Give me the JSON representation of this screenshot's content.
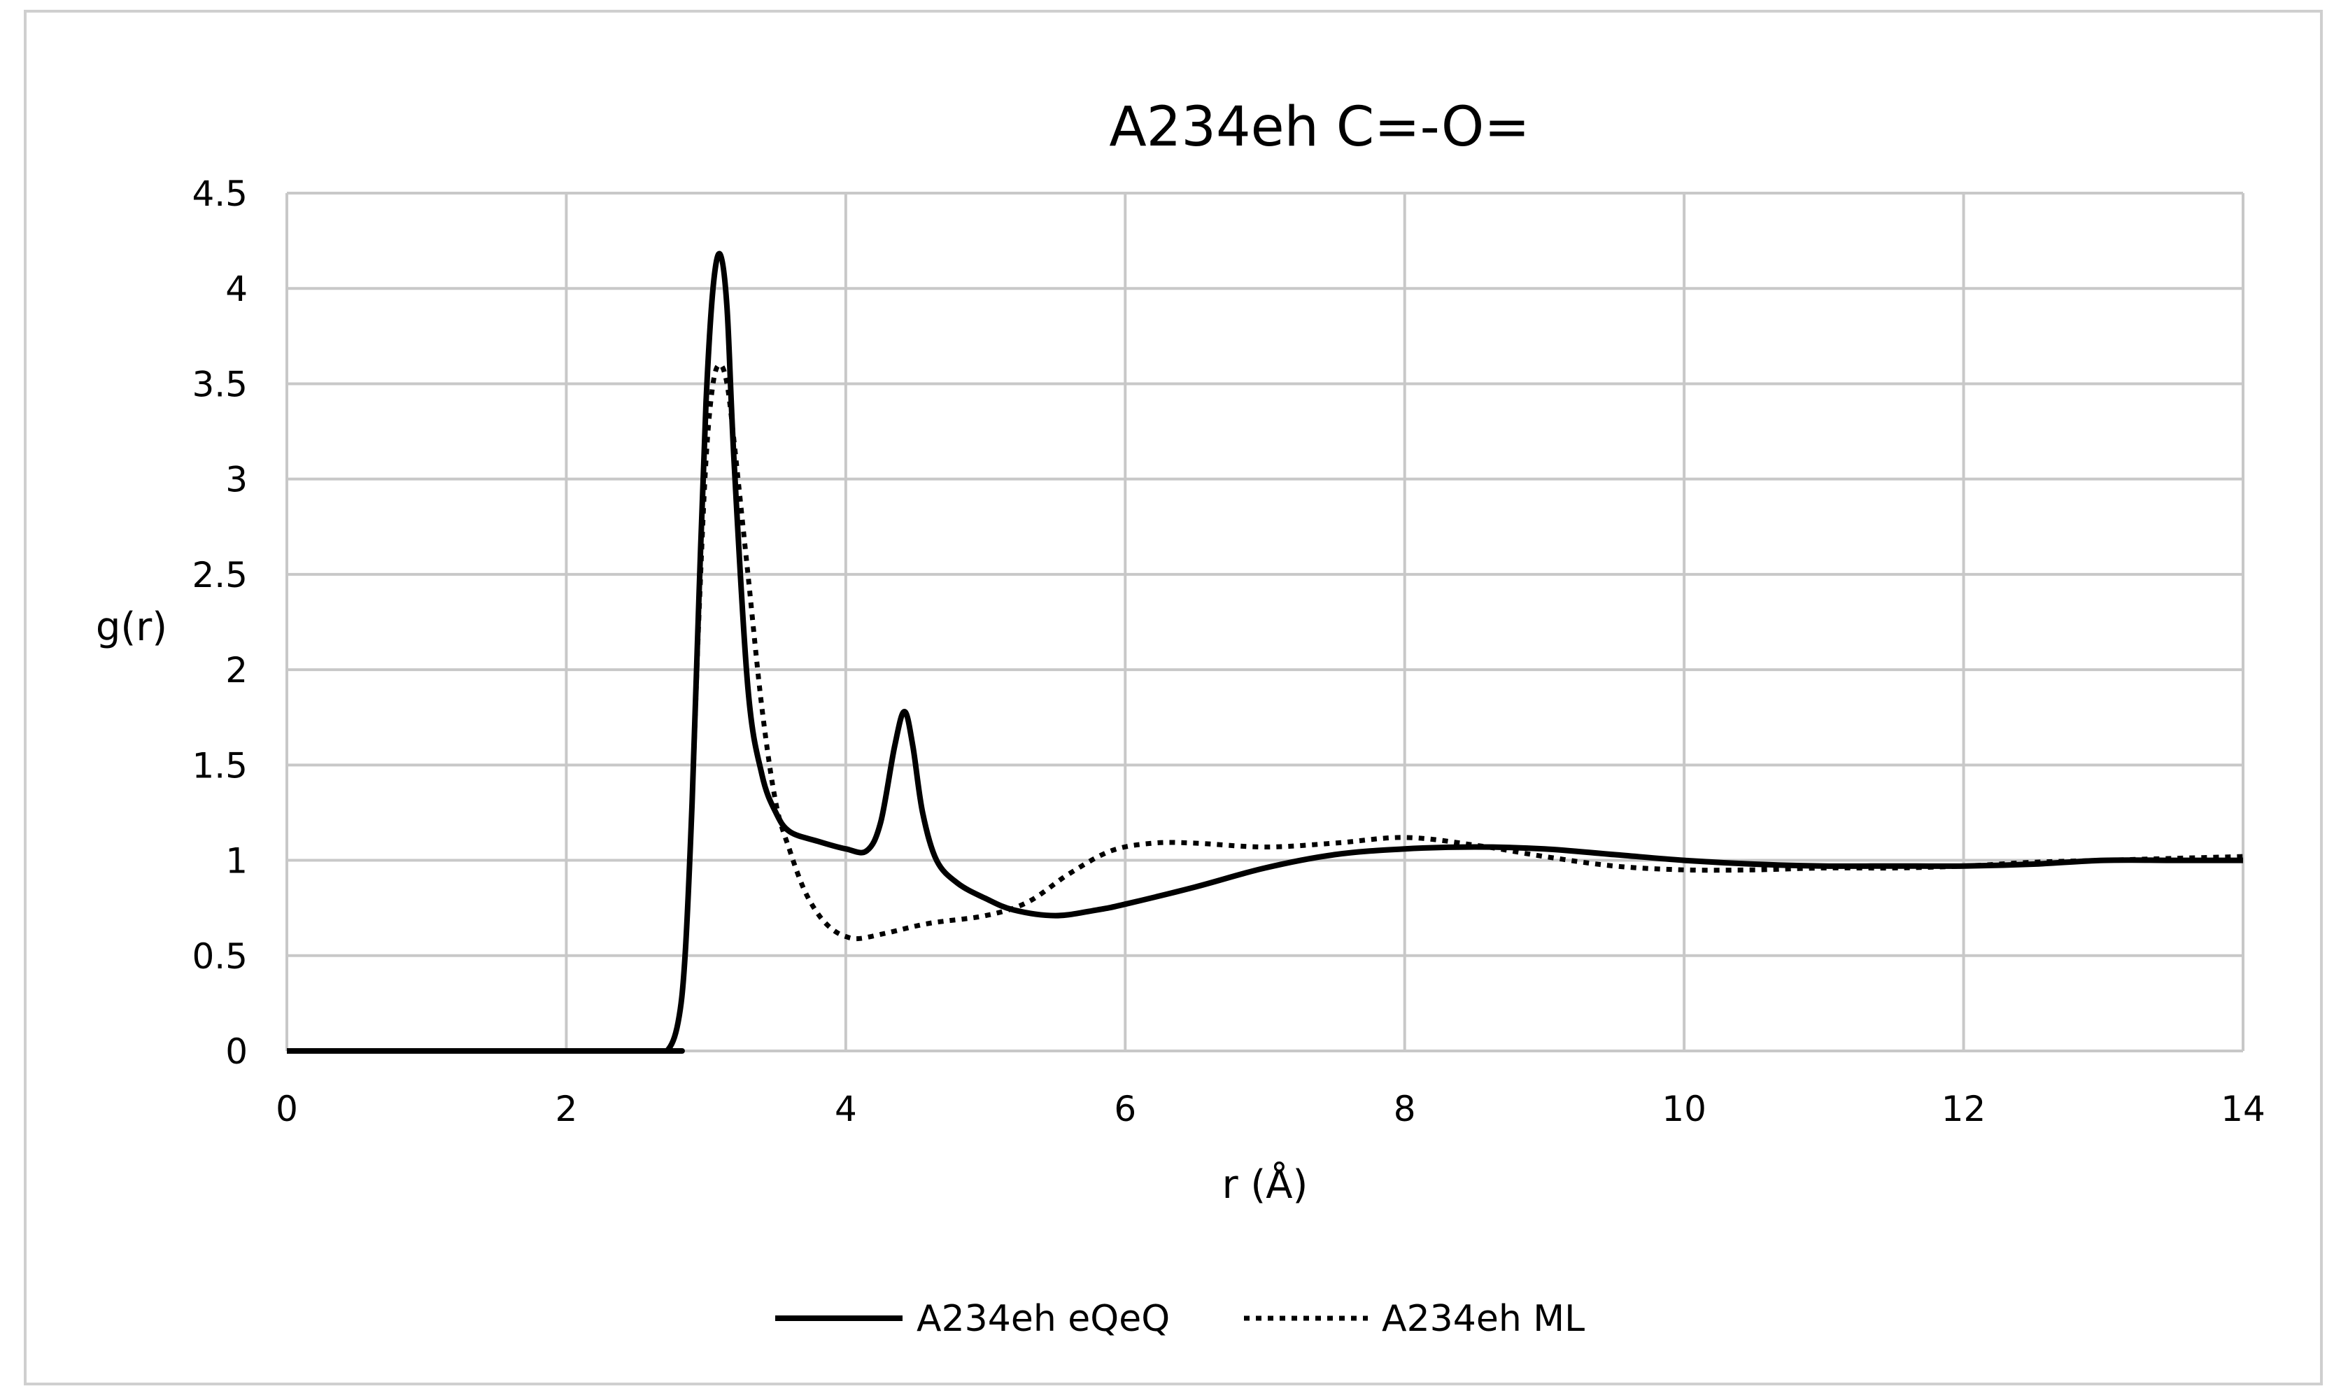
{
  "chart_data": {
    "type": "line",
    "title": "A234eh C=-O=",
    "xlabel": "r (Å)",
    "ylabel": "g(r)",
    "xlim": [
      0,
      14
    ],
    "ylim": [
      0,
      4.5
    ],
    "x_ticks": [
      "0",
      "2",
      "4",
      "6",
      "8",
      "10",
      "12",
      "14"
    ],
    "y_ticks": [
      "0",
      "0.5",
      "1",
      "1.5",
      "2",
      "2.5",
      "3",
      "3.5",
      "4",
      "4.5"
    ],
    "grid": true,
    "legend_position": "bottom",
    "series": [
      {
        "name": "A234eh eQeQ",
        "style": "solid",
        "color": "#000000",
        "x": [
          0,
          2.6,
          2.72,
          2.8,
          2.85,
          2.9,
          2.95,
          3.0,
          3.05,
          3.1,
          3.15,
          3.2,
          3.3,
          3.4,
          3.5,
          3.6,
          3.8,
          4.0,
          4.15,
          4.25,
          4.35,
          4.42,
          4.48,
          4.55,
          4.65,
          4.8,
          5.0,
          5.2,
          5.5,
          5.8,
          6.0,
          6.5,
          7.0,
          7.5,
          8.0,
          8.5,
          9.0,
          9.5,
          10.0,
          10.5,
          11.0,
          11.5,
          12.0,
          12.5,
          13.0,
          13.5,
          14.0
        ],
        "y": [
          0,
          0,
          0,
          0.15,
          0.5,
          1.3,
          2.4,
          3.4,
          4.0,
          4.18,
          3.9,
          3.1,
          1.9,
          1.45,
          1.25,
          1.15,
          1.1,
          1.06,
          1.05,
          1.2,
          1.6,
          1.78,
          1.6,
          1.25,
          1.0,
          0.88,
          0.8,
          0.74,
          0.71,
          0.74,
          0.77,
          0.86,
          0.96,
          1.03,
          1.06,
          1.07,
          1.06,
          1.03,
          1.0,
          0.98,
          0.97,
          0.97,
          0.97,
          0.98,
          1.0,
          1.0,
          1.0
        ]
      },
      {
        "name": "A234eh ML",
        "style": "dotted",
        "color": "#000000",
        "x": [
          0,
          2.6,
          2.72,
          2.8,
          2.85,
          2.9,
          2.95,
          3.0,
          3.05,
          3.1,
          3.15,
          3.2,
          3.3,
          3.4,
          3.5,
          3.6,
          3.7,
          3.8,
          3.9,
          4.0,
          4.1,
          4.3,
          4.6,
          5.0,
          5.3,
          5.6,
          5.9,
          6.2,
          6.5,
          7.0,
          7.5,
          8.0,
          8.5,
          9.0,
          9.5,
          10.0,
          10.5,
          11.0,
          11.5,
          12.0,
          12.5,
          13.0,
          13.5,
          14.0
        ],
        "y": [
          0,
          0,
          0,
          0.15,
          0.5,
          1.3,
          2.3,
          3.1,
          3.5,
          3.6,
          3.5,
          3.2,
          2.5,
          1.8,
          1.3,
          1.05,
          0.85,
          0.72,
          0.64,
          0.6,
          0.59,
          0.62,
          0.67,
          0.71,
          0.78,
          0.93,
          1.05,
          1.09,
          1.09,
          1.07,
          1.09,
          1.12,
          1.08,
          1.02,
          0.97,
          0.95,
          0.95,
          0.96,
          0.96,
          0.97,
          0.99,
          1.0,
          1.01,
          1.02
        ]
      }
    ]
  }
}
